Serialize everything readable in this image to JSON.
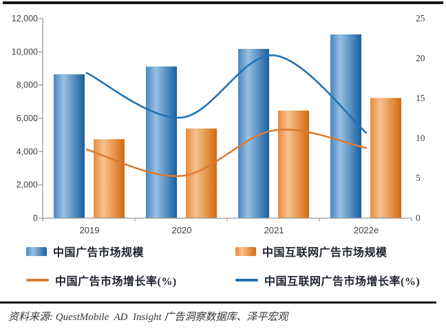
{
  "chart_data": {
    "type": "combo-bar-line",
    "categories": [
      "2019",
      "2020",
      "2021",
      "2022e"
    ],
    "series": [
      {
        "name": "中国广告市场规模",
        "type": "bar",
        "axis": "left",
        "values": [
          8650,
          9120,
          10180,
          11050
        ],
        "gradient": [
          "#4a86c0",
          "#97c0e2",
          "#185f9f"
        ]
      },
      {
        "name": "中国互联网广告市场规模",
        "type": "bar",
        "axis": "left",
        "values": [
          4750,
          5390,
          6470,
          7230
        ],
        "gradient": [
          "#e98a40",
          "#f7c18d",
          "#d4690f"
        ]
      },
      {
        "name": "中国广告市场增长率(%)",
        "type": "line",
        "axis": "right",
        "values": [
          8.6,
          5.3,
          11.0,
          8.8
        ],
        "color": "#dc7b30"
      },
      {
        "name": "中国互联网广告市场增长率(%)",
        "type": "line",
        "axis": "right",
        "values": [
          18.2,
          12.6,
          20.4,
          10.7
        ],
        "color": "#2272b4"
      }
    ],
    "left_axis": {
      "min": 0,
      "max": 12000,
      "step": 2000,
      "labels": [
        "12,000",
        "10,000",
        "8,000",
        "6,000",
        "4,000",
        "2,000",
        "0"
      ]
    },
    "right_axis": {
      "min": 0,
      "max": 25,
      "step": 5,
      "labels": [
        "25",
        "20",
        "15",
        "10",
        "5",
        "0"
      ]
    },
    "grid": false,
    "legend_position": "bottom",
    "axis_color": "#9b9b9b"
  },
  "source_note": "资料来源: QuestMobile  AD  Insight 广告洞察数据库、泽平宏观"
}
